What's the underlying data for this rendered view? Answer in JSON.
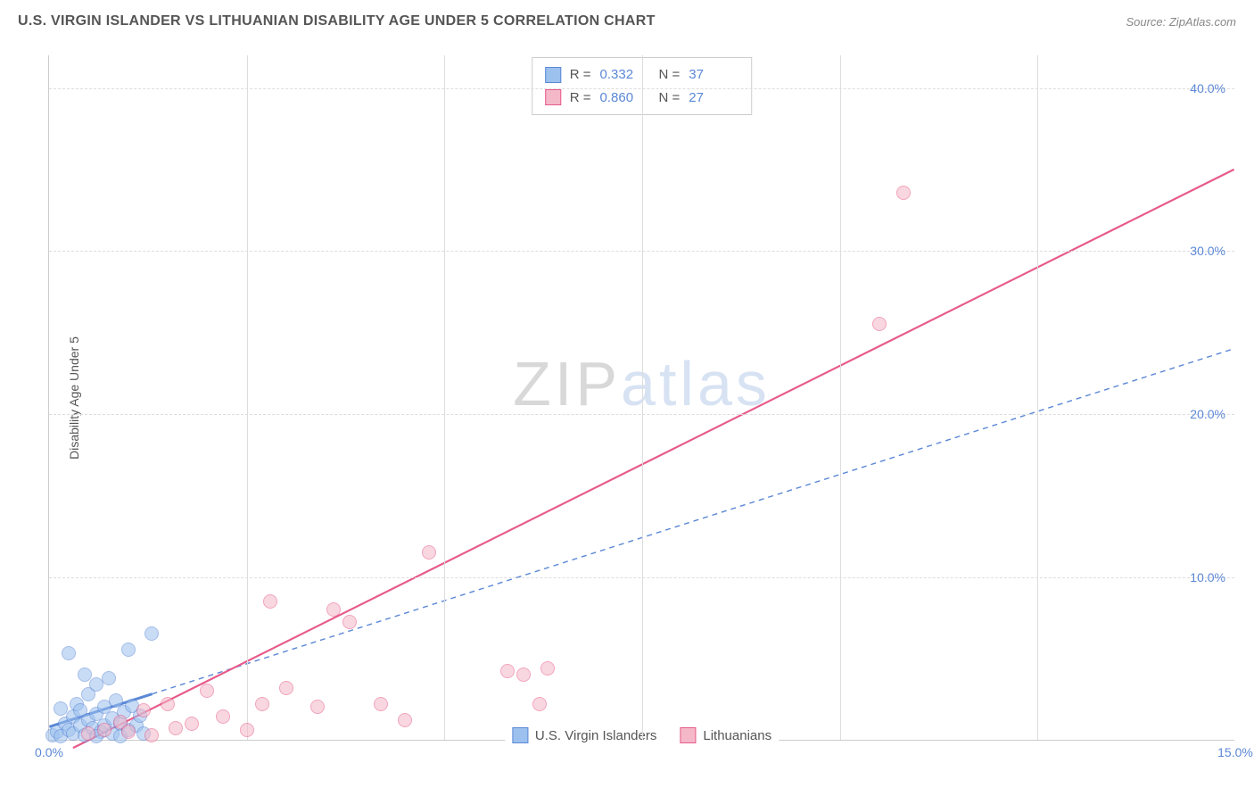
{
  "header": {
    "title": "U.S. VIRGIN ISLANDER VS LITHUANIAN DISABILITY AGE UNDER 5 CORRELATION CHART",
    "source": "Source: ZipAtlas.com"
  },
  "chart": {
    "type": "scatter",
    "y_label": "Disability Age Under 5",
    "xlim": [
      0,
      15
    ],
    "ylim": [
      0,
      42
    ],
    "x_ticks": [
      {
        "v": 0,
        "label": "0.0%"
      },
      {
        "v": 15,
        "label": "15.0%"
      }
    ],
    "x_gridlines": [
      2.5,
      5,
      7.5,
      10,
      12.5
    ],
    "y_ticks": [
      {
        "v": 10,
        "label": "10.0%"
      },
      {
        "v": 20,
        "label": "20.0%"
      },
      {
        "v": 30,
        "label": "30.0%"
      },
      {
        "v": 40,
        "label": "40.0%"
      }
    ],
    "tick_color": "#5b87d6",
    "grid_color": "#dddddd",
    "axis_color": "#cccccc",
    "background_color": "#ffffff",
    "point_radius": 8,
    "series": [
      {
        "name": "U.S. Virgin Islanders",
        "fill": "#9cc1ee",
        "stroke": "#5b87d6",
        "fill_opacity": 0.55,
        "r_value": "0.332",
        "n_value": "37",
        "trend": {
          "x1": 0,
          "y1": 0.8,
          "x2": 15,
          "y2": 24.0,
          "dash": "6,5",
          "width": 1.4,
          "range_solid": [
            0,
            1.3
          ]
        },
        "points": [
          [
            0.05,
            0.3
          ],
          [
            0.1,
            0.5
          ],
          [
            0.15,
            0.2
          ],
          [
            0.2,
            1.0
          ],
          [
            0.25,
            0.6
          ],
          [
            0.3,
            1.4
          ],
          [
            0.3,
            0.4
          ],
          [
            0.35,
            2.2
          ],
          [
            0.4,
            0.9
          ],
          [
            0.4,
            1.8
          ],
          [
            0.45,
            0.3
          ],
          [
            0.5,
            2.8
          ],
          [
            0.5,
            1.2
          ],
          [
            0.55,
            0.7
          ],
          [
            0.6,
            3.4
          ],
          [
            0.6,
            1.6
          ],
          [
            0.65,
            0.5
          ],
          [
            0.7,
            2.0
          ],
          [
            0.7,
            0.9
          ],
          [
            0.75,
            3.8
          ],
          [
            0.8,
            1.3
          ],
          [
            0.8,
            0.4
          ],
          [
            0.85,
            2.4
          ],
          [
            0.9,
            1.0
          ],
          [
            0.9,
            0.2
          ],
          [
            0.95,
            1.7
          ],
          [
            1.0,
            0.6
          ],
          [
            1.0,
            5.5
          ],
          [
            1.05,
            2.1
          ],
          [
            1.1,
            0.9
          ],
          [
            1.15,
            1.5
          ],
          [
            1.2,
            0.4
          ],
          [
            0.25,
            5.3
          ],
          [
            1.3,
            6.5
          ],
          [
            0.45,
            4.0
          ],
          [
            0.6,
            0.2
          ],
          [
            0.15,
            1.9
          ]
        ]
      },
      {
        "name": "Lithuanians",
        "fill": "#f4b8c8",
        "stroke": "#e75a8a",
        "fill_opacity": 0.55,
        "r_value": "0.860",
        "n_value": "27",
        "trend": {
          "x1": 0.3,
          "y1": -0.5,
          "x2": 15,
          "y2": 35.0,
          "dash": "none",
          "width": 2.2
        },
        "points": [
          [
            0.5,
            0.4
          ],
          [
            0.7,
            0.6
          ],
          [
            0.9,
            1.1
          ],
          [
            1.0,
            0.5
          ],
          [
            1.2,
            1.8
          ],
          [
            1.3,
            0.3
          ],
          [
            1.5,
            2.2
          ],
          [
            1.6,
            0.7
          ],
          [
            1.8,
            1.0
          ],
          [
            2.0,
            3.0
          ],
          [
            2.2,
            1.4
          ],
          [
            2.5,
            0.6
          ],
          [
            2.7,
            2.2
          ],
          [
            2.8,
            8.5
          ],
          [
            3.0,
            3.2
          ],
          [
            3.4,
            2.0
          ],
          [
            3.6,
            8.0
          ],
          [
            3.8,
            7.2
          ],
          [
            4.2,
            2.2
          ],
          [
            4.5,
            1.2
          ],
          [
            4.8,
            11.5
          ],
          [
            5.8,
            4.2
          ],
          [
            6.0,
            4.0
          ],
          [
            6.2,
            2.2
          ],
          [
            6.3,
            4.4
          ],
          [
            10.5,
            25.5
          ],
          [
            10.8,
            33.5
          ]
        ]
      }
    ],
    "legend_bottom": [
      {
        "label": "U.S. Virgin Islanders",
        "fill": "#9cc1ee",
        "stroke": "#5b87d6"
      },
      {
        "label": "Lithuanians",
        "fill": "#f4b8c8",
        "stroke": "#e75a8a"
      }
    ],
    "watermark": {
      "z": "ZIP",
      "rest": "atlas",
      "z_color": "#555555"
    }
  }
}
